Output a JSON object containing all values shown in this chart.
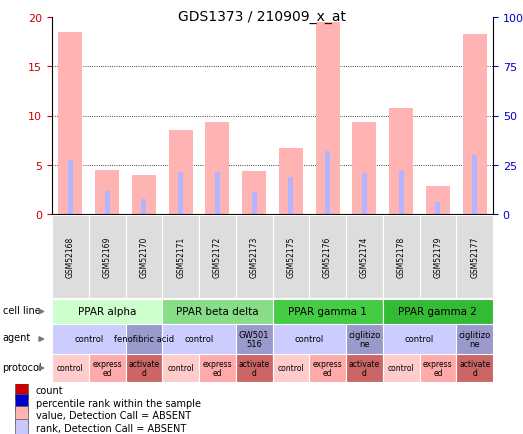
{
  "title": "GDS1373 / 210909_x_at",
  "samples": [
    "GSM52168",
    "GSM52169",
    "GSM52170",
    "GSM52171",
    "GSM52172",
    "GSM52173",
    "GSM52175",
    "GSM52176",
    "GSM52174",
    "GSM52178",
    "GSM52179",
    "GSM52177"
  ],
  "bar_values": [
    18.5,
    4.5,
    4.0,
    8.5,
    9.3,
    4.4,
    6.7,
    19.5,
    9.3,
    10.8,
    2.8,
    18.3
  ],
  "rank_values": [
    5.5,
    2.3,
    1.5,
    4.3,
    4.3,
    2.2,
    3.8,
    6.4,
    4.2,
    4.5,
    1.2,
    6.0
  ],
  "bar_color": "#ffb3b3",
  "rank_color": "#b3b3ff",
  "ylim_left": [
    0,
    20
  ],
  "ylim_right": [
    0,
    100
  ],
  "yticks_left": [
    0,
    5,
    10,
    15,
    20
  ],
  "yticks_right": [
    0,
    25,
    50,
    75,
    100
  ],
  "ytick_labels_right": [
    "0",
    "25",
    "50",
    "75",
    "100%"
  ],
  "left_tick_color": "#cc0000",
  "right_tick_color": "#0000cc",
  "cell_lines": [
    {
      "label": "PPAR alpha",
      "start": 0,
      "end": 3,
      "color": "#ccffcc"
    },
    {
      "label": "PPAR beta delta",
      "start": 3,
      "end": 6,
      "color": "#88dd88"
    },
    {
      "label": "PPAR gamma 1",
      "start": 6,
      "end": 9,
      "color": "#44cc44"
    },
    {
      "label": "PPAR gamma 2",
      "start": 9,
      "end": 12,
      "color": "#33bb33"
    }
  ],
  "agents": [
    {
      "label": "control",
      "start": 0,
      "end": 2,
      "color": "#ccccff"
    },
    {
      "label": "fenofibric acid",
      "start": 2,
      "end": 3,
      "color": "#9999cc"
    },
    {
      "label": "control",
      "start": 3,
      "end": 5,
      "color": "#ccccff"
    },
    {
      "label": "GW501\n516",
      "start": 5,
      "end": 6,
      "color": "#9999cc"
    },
    {
      "label": "control",
      "start": 6,
      "end": 8,
      "color": "#ccccff"
    },
    {
      "label": "ciglitizo\nne",
      "start": 8,
      "end": 9,
      "color": "#9999cc"
    },
    {
      "label": "control",
      "start": 9,
      "end": 11,
      "color": "#ccccff"
    },
    {
      "label": "ciglitizo\nne",
      "start": 11,
      "end": 12,
      "color": "#9999cc"
    }
  ],
  "protocols": [
    {
      "label": "control",
      "start": 0,
      "end": 1,
      "color": "#ffcccc"
    },
    {
      "label": "express\ned",
      "start": 1,
      "end": 2,
      "color": "#ffaaaa"
    },
    {
      "label": "activate\nd",
      "start": 2,
      "end": 3,
      "color": "#cc6666"
    },
    {
      "label": "control",
      "start": 3,
      "end": 4,
      "color": "#ffcccc"
    },
    {
      "label": "express\ned",
      "start": 4,
      "end": 5,
      "color": "#ffaaaa"
    },
    {
      "label": "activate\nd",
      "start": 5,
      "end": 6,
      "color": "#cc6666"
    },
    {
      "label": "control",
      "start": 6,
      "end": 7,
      "color": "#ffcccc"
    },
    {
      "label": "express\ned",
      "start": 7,
      "end": 8,
      "color": "#ffaaaa"
    },
    {
      "label": "activate\nd",
      "start": 8,
      "end": 9,
      "color": "#cc6666"
    },
    {
      "label": "control",
      "start": 9,
      "end": 10,
      "color": "#ffcccc"
    },
    {
      "label": "express\ned",
      "start": 10,
      "end": 11,
      "color": "#ffaaaa"
    },
    {
      "label": "activate\nd",
      "start": 11,
      "end": 12,
      "color": "#cc6666"
    }
  ],
  "row_labels": [
    "cell line",
    "agent",
    "protocol"
  ],
  "legend_items": [
    {
      "label": "count",
      "color": "#cc0000"
    },
    {
      "label": "percentile rank within the sample",
      "color": "#0000cc"
    },
    {
      "label": "value, Detection Call = ABSENT",
      "color": "#ffb3b3"
    },
    {
      "label": "rank, Detection Call = ABSENT",
      "color": "#c8c8ff"
    }
  ],
  "bg_color": "#ffffff",
  "border_color": "#000000"
}
